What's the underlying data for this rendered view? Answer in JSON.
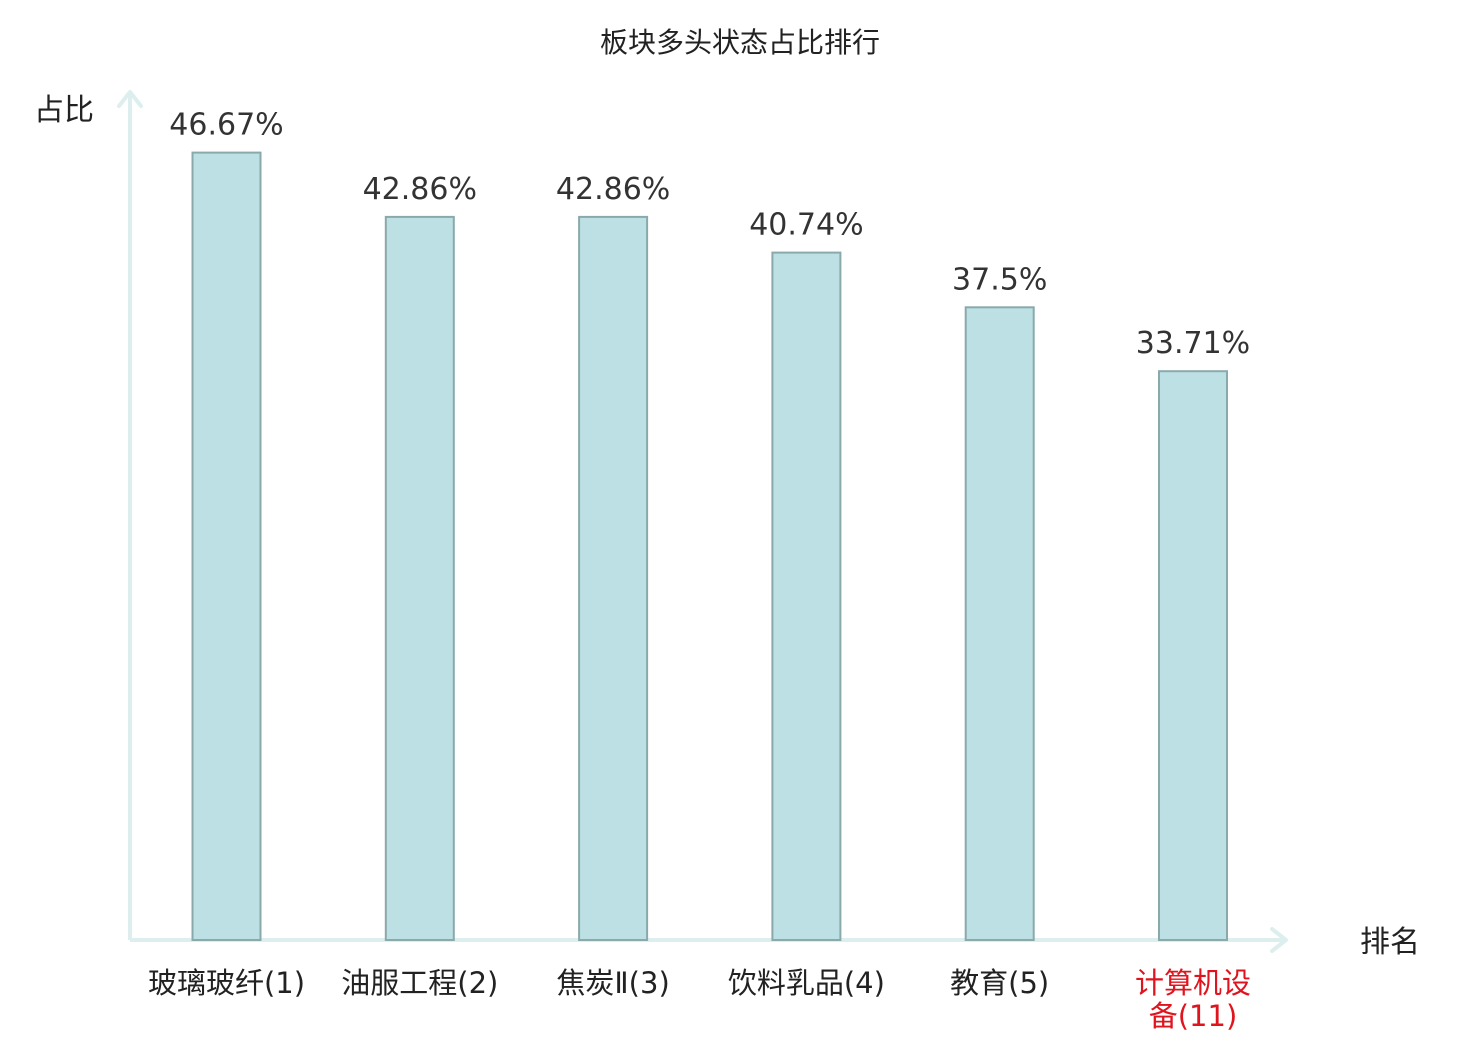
{
  "chart_data": {
    "type": "bar",
    "title": "板块多头状态占比排行",
    "ylabel": "占比",
    "xlabel": "排名",
    "categories": [
      [
        "玻璃玻纤(1)"
      ],
      [
        "油服工程(2)"
      ],
      [
        "焦炭Ⅱ(3)"
      ],
      [
        "饮料乳品(4)"
      ],
      [
        "教育(5)"
      ],
      [
        "计算机设",
        "备(11)"
      ]
    ],
    "values": [
      46.67,
      42.86,
      42.86,
      40.74,
      37.5,
      33.71
    ],
    "value_labels": [
      "46.67%",
      "42.86%",
      "42.86%",
      "40.74%",
      "37.5%",
      "33.71%"
    ],
    "highlight_index": 5,
    "ylim": [
      0,
      47
    ],
    "grid": false,
    "legend": "none",
    "colors": {
      "bar_fill": "#bce0e3",
      "bar_stroke": "#8aa9ab",
      "axis": "#dcefee",
      "tick_text": "#222222",
      "highlight_text": "#e0141e",
      "value_text": "#333333"
    }
  }
}
